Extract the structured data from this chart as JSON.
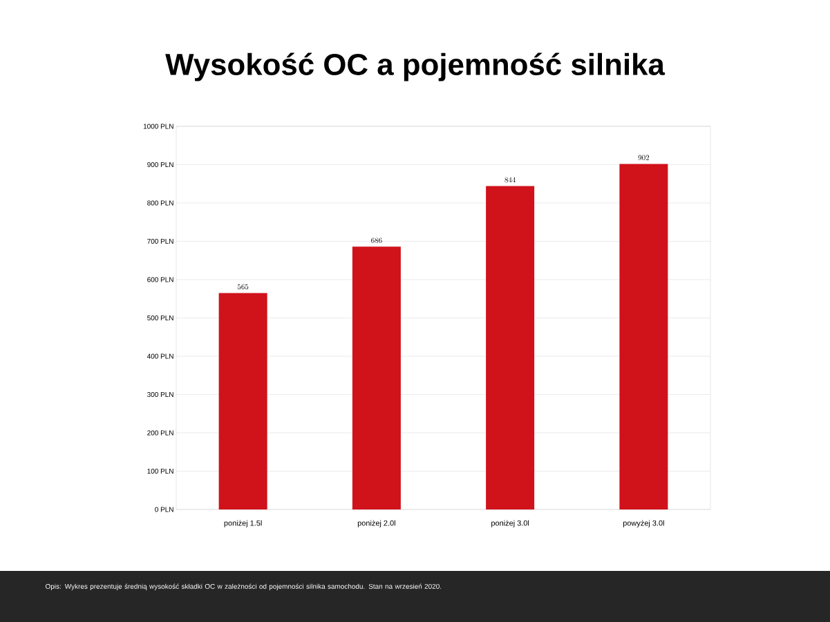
{
  "chart_data": {
    "type": "bar",
    "title": "Wysokość OC a pojemność silnika",
    "categories": [
      "poniżej 1.5l",
      "poniżej 2.0l",
      "poniżej 3.0l",
      "powyżej 3.0l"
    ],
    "values": [
      565,
      686,
      844,
      902
    ],
    "color": "#d0121b",
    "data_labels": true,
    "grid": "y",
    "ylim": [
      0,
      1000
    ],
    "yticks": [
      {
        "value": 0,
        "label": "0 PLN"
      },
      {
        "value": 100,
        "label": "100 PLN"
      },
      {
        "value": 200,
        "label": "200 PLN"
      },
      {
        "value": 300,
        "label": "300 PLN"
      },
      {
        "value": 400,
        "label": "400 PLN"
      },
      {
        "value": 500,
        "label": "500 PLN"
      },
      {
        "value": 600,
        "label": "600 PLN"
      },
      {
        "value": 700,
        "label": "700 PLN"
      },
      {
        "value": 800,
        "label": "800 PLN"
      },
      {
        "value": 900,
        "label": "900 PLN"
      },
      {
        "value": 1000,
        "label": "1000 PLN"
      }
    ],
    "annotations": [
      "Opis: Wykres prezentuje średnią wysokość składki OC w zależności od pojemności silnika samochodu. Stan na wrzesień 2020."
    ]
  }
}
